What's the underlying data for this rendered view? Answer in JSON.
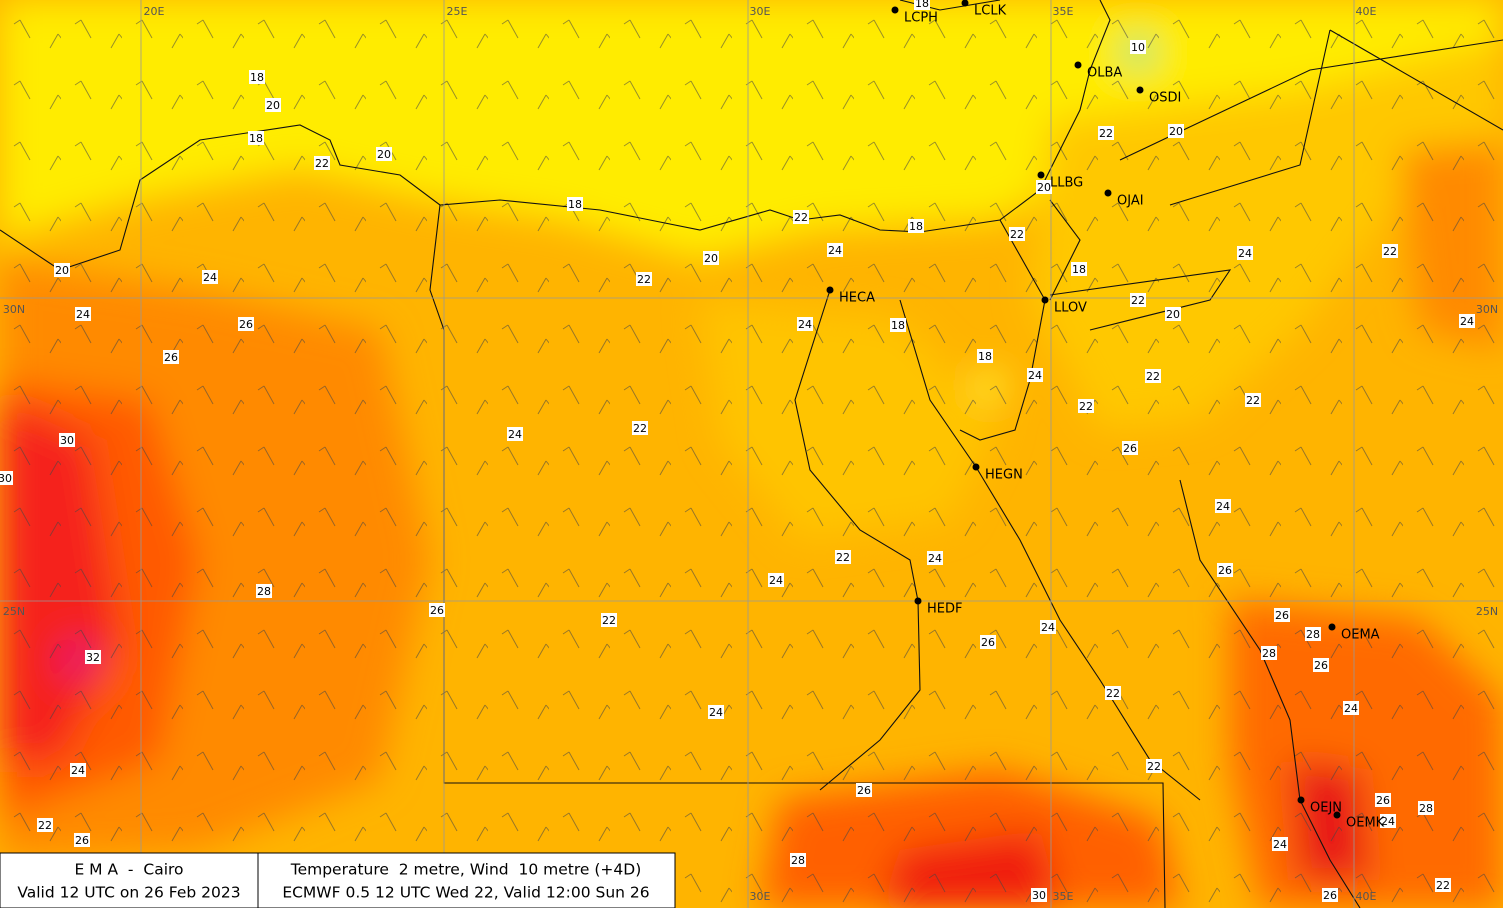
{
  "grid_labels": [
    "20E",
    "25E",
    "30E",
    "35E",
    "40E",
    "30N",
    "30N",
    "25N",
    "25N",
    "30E",
    "35E",
    "40E"
  ],
  "stations": [
    "LCPH",
    "LCLK",
    "OLBA",
    "OSDI",
    "LLBG",
    "OJAI",
    "HECA",
    "LLOV",
    "HEGN",
    "HEDF",
    "OEMA",
    "OEJN",
    "OEMK"
  ],
  "contour_labels": [
    18,
    20,
    18,
    22,
    20,
    18,
    20,
    22,
    22,
    24,
    18,
    22,
    22,
    20,
    20,
    18,
    22,
    20,
    24,
    22,
    24,
    20,
    24,
    24,
    26,
    26,
    24,
    18,
    18,
    24,
    22,
    22,
    22,
    24,
    22,
    30,
    30,
    26,
    24,
    22,
    24,
    24,
    26,
    28,
    26,
    22,
    26,
    24,
    26,
    28,
    28,
    26,
    32,
    24,
    22,
    24,
    22,
    24,
    26,
    22,
    26,
    26,
    28,
    24,
    28,
    24,
    30,
    26,
    22,
    18,
    10
  ],
  "info": {
    "org": "E M A  -  Cairo",
    "valid": "Valid 12 UTC on 26 Feb 2023",
    "product": "Temperature  2 metre, Wind  10 metre (+4D)",
    "run": "ECMWF 0.5 12 UTC Wed 22, Valid 12:00 Sun 26"
  }
}
